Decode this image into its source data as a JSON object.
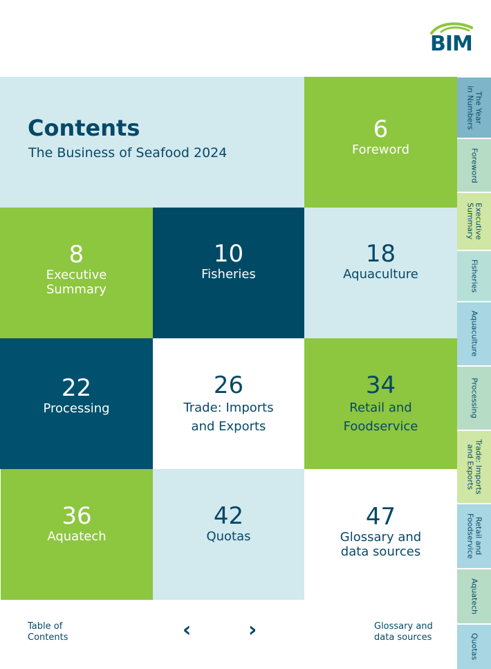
{
  "logo": {
    "text": "BIM"
  },
  "header": {
    "title": "Contents",
    "subtitle": "The Business of Seafood 2024"
  },
  "tiles": [
    {
      "page": "6",
      "label": "Foreword"
    },
    {
      "page": "8",
      "label": "Executive\nSummary"
    },
    {
      "page": "10",
      "label": "Fisheries"
    },
    {
      "page": "18",
      "label": "Aquaculture"
    },
    {
      "page": "22",
      "label": "Processing"
    },
    {
      "page": "26",
      "label": "Trade: Imports\nand Exports"
    },
    {
      "page": "34",
      "label": "Retail and\nFoodservice"
    },
    {
      "page": "36",
      "label": "Aquatech"
    },
    {
      "page": "42",
      "label": "Quotas"
    },
    {
      "page": "47",
      "label": "Glossary and\ndata sources"
    }
  ],
  "footer": {
    "left_link": "Table of\nContents",
    "prev_icon": "‹",
    "next_icon": "›",
    "right_link": "Glossary and\ndata sources"
  },
  "side_tabs": [
    {
      "label": "The Year\nin Numbers",
      "color": "#7fb5c9"
    },
    {
      "label": "Foreword",
      "color": "#b7dcc6"
    },
    {
      "label": "Executive\nSummary",
      "color": "#cfe6a4"
    },
    {
      "label": "Fisheries",
      "color": "#b6dfd8"
    },
    {
      "label": "Aquaculture",
      "color": "#a8d6e3"
    },
    {
      "label": "Processing",
      "color": "#b7dcc6"
    },
    {
      "label": "Trade: Imports\nand Exports",
      "color": "#cfe6a4"
    },
    {
      "label": "Retail and\nFoodservice",
      "color": "#a8d6e3"
    },
    {
      "label": "Aquatech",
      "color": "#b7dcc6"
    },
    {
      "label": "Quotas",
      "color": "#a8d6e3"
    }
  ],
  "colors": {
    "navy": "#004a66",
    "green": "#8dc63f",
    "light_blue": "#d2e9ee"
  }
}
